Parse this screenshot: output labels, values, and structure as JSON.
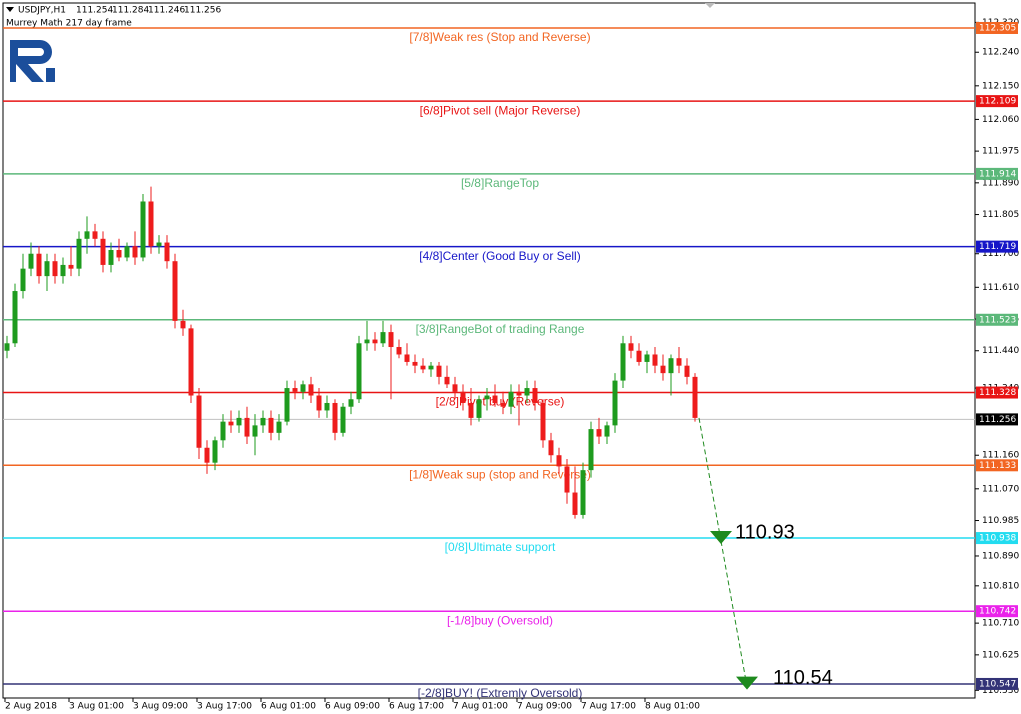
{
  "chart_data": {
    "type": "candlestick",
    "header": {
      "symbol": "USDJPY,H1",
      "quote": [
        111.254,
        111.284,
        111.246,
        111.256
      ],
      "indicator": "Murrey Math 217 day frame"
    },
    "up_color": "#1e9b1e",
    "down_color": "#ee1c1c",
    "ylim": [
      110.504,
      112.38
    ],
    "yticks": [
      {
        "value": 112.32,
        "label": "112.320"
      },
      {
        "value": 112.24,
        "label": "112.240"
      },
      {
        "value": 112.15,
        "label": "112.150"
      },
      {
        "value": 112.06,
        "label": "112.060"
      },
      111.975,
      {
        "value": 111.89,
        "label": "111.890"
      },
      111.805,
      {
        "value": 111.7,
        "label": "111.700"
      },
      {
        "value": 111.61,
        "label": "111.610"
      },
      111.525,
      {
        "value": 111.44,
        "label": "111.440"
      },
      {
        "value": 111.34,
        "label": "111.340"
      },
      {
        "value": 111.16,
        "label": "111.160"
      },
      {
        "value": 111.07,
        "label": "111.070"
      },
      110.985,
      {
        "value": 110.89,
        "label": "110.890"
      },
      {
        "value": 110.81,
        "label": "110.810"
      },
      {
        "value": 110.71,
        "label": "110.710"
      },
      110.625,
      {
        "value": 110.53,
        "label": "110.530"
      }
    ],
    "categories": [
      "2 Aug 2018",
      null,
      null,
      null,
      null,
      null,
      null,
      null,
      "3 Aug 01:00",
      null,
      null,
      null,
      null,
      null,
      null,
      null,
      "3 Aug 09:00",
      null,
      null,
      null,
      null,
      null,
      null,
      null,
      "3 Aug 17:00",
      null,
      null,
      null,
      null,
      null,
      null,
      null,
      "6 Aug 01:00",
      null,
      null,
      null,
      null,
      null,
      null,
      null,
      "6 Aug 09:00",
      null,
      null,
      null,
      null,
      null,
      null,
      null,
      "6 Aug 17:00",
      null,
      null,
      null,
      null,
      null,
      null,
      null,
      "7 Aug 01:00",
      null,
      null,
      null,
      null,
      null,
      null,
      null,
      "7 Aug 09:00",
      null,
      null,
      null,
      null,
      null,
      null,
      null,
      "7 Aug 17:00",
      null,
      null,
      null,
      null,
      null,
      null,
      null,
      "8 Aug 01:00",
      null,
      null,
      null,
      null,
      null,
      null
    ],
    "candles": [
      [
        111.44,
        111.48,
        111.42,
        111.46
      ],
      [
        111.46,
        111.62,
        111.45,
        111.6
      ],
      [
        111.6,
        111.7,
        111.58,
        111.66
      ],
      [
        111.66,
        111.73,
        111.64,
        111.7
      ],
      [
        111.7,
        111.72,
        111.62,
        111.64
      ],
      [
        111.64,
        111.7,
        111.6,
        111.68
      ],
      [
        111.68,
        111.7,
        111.62,
        111.64
      ],
      [
        111.64,
        111.69,
        111.62,
        111.67
      ],
      [
        111.67,
        111.72,
        111.64,
        111.66
      ],
      [
        111.66,
        111.76,
        111.64,
        111.74
      ],
      [
        111.74,
        111.8,
        111.7,
        111.76
      ],
      [
        111.76,
        111.78,
        111.72,
        111.74
      ],
      [
        111.74,
        111.76,
        111.65,
        111.67
      ],
      [
        111.67,
        111.73,
        111.65,
        111.71
      ],
      [
        111.71,
        111.74,
        111.68,
        111.69
      ],
      [
        111.69,
        111.73,
        111.68,
        111.72
      ],
      [
        111.72,
        111.76,
        111.67,
        111.69
      ],
      [
        111.69,
        111.86,
        111.68,
        111.84
      ],
      [
        111.84,
        111.88,
        111.7,
        111.72
      ],
      [
        111.72,
        111.75,
        111.7,
        111.73
      ],
      [
        111.73,
        111.75,
        111.66,
        111.68
      ],
      [
        111.68,
        111.7,
        111.5,
        111.52
      ],
      [
        111.52,
        111.55,
        111.48,
        111.5
      ],
      [
        111.5,
        111.51,
        111.3,
        111.32
      ],
      [
        111.32,
        111.34,
        111.15,
        111.18
      ],
      [
        111.18,
        111.2,
        111.11,
        111.14
      ],
      [
        111.14,
        111.21,
        111.12,
        111.2
      ],
      [
        111.2,
        111.27,
        111.18,
        111.25
      ],
      [
        111.25,
        111.28,
        111.22,
        111.24
      ],
      [
        111.24,
        111.28,
        111.22,
        111.26
      ],
      [
        111.26,
        111.29,
        111.19,
        111.21
      ],
      [
        111.21,
        111.27,
        111.16,
        111.24
      ],
      [
        111.24,
        111.28,
        111.22,
        111.26
      ],
      [
        111.26,
        111.28,
        111.2,
        111.22
      ],
      [
        111.22,
        111.27,
        111.2,
        111.25
      ],
      [
        111.25,
        111.36,
        111.24,
        111.34
      ],
      [
        111.34,
        111.36,
        111.31,
        111.33
      ],
      [
        111.33,
        111.36,
        111.31,
        111.35
      ],
      [
        111.35,
        111.37,
        111.3,
        111.32
      ],
      [
        111.32,
        111.34,
        111.26,
        111.28
      ],
      [
        111.28,
        111.32,
        111.26,
        111.3
      ],
      [
        111.3,
        111.31,
        111.2,
        111.22
      ],
      [
        111.22,
        111.3,
        111.21,
        111.29
      ],
      [
        111.29,
        111.33,
        111.27,
        111.31
      ],
      [
        111.31,
        111.48,
        111.3,
        111.46
      ],
      [
        111.46,
        111.52,
        111.44,
        111.47
      ],
      [
        111.47,
        111.49,
        111.44,
        111.46
      ],
      [
        111.46,
        111.52,
        111.45,
        111.49
      ],
      [
        111.49,
        111.51,
        111.31,
        111.45
      ],
      [
        111.45,
        111.47,
        111.42,
        111.43
      ],
      [
        111.43,
        111.46,
        111.4,
        111.41
      ],
      [
        111.41,
        111.43,
        111.38,
        111.4
      ],
      [
        111.4,
        111.42,
        111.38,
        111.39
      ],
      [
        111.39,
        111.41,
        111.37,
        111.4
      ],
      [
        111.4,
        111.41,
        111.35,
        111.37
      ],
      [
        111.37,
        111.4,
        111.34,
        111.35
      ],
      [
        111.35,
        111.37,
        111.31,
        111.33
      ],
      [
        111.33,
        111.35,
        111.28,
        111.3
      ],
      [
        111.3,
        111.34,
        111.24,
        111.26
      ],
      [
        111.26,
        111.32,
        111.25,
        111.31
      ],
      [
        111.31,
        111.34,
        111.28,
        111.32
      ],
      [
        111.32,
        111.35,
        111.29,
        111.3
      ],
      [
        111.3,
        111.33,
        111.27,
        111.29
      ],
      [
        111.29,
        111.35,
        111.27,
        111.33
      ],
      [
        111.33,
        111.35,
        111.24,
        111.32
      ],
      [
        111.32,
        111.36,
        111.3,
        111.34
      ],
      [
        111.34,
        111.36,
        111.28,
        111.3
      ],
      [
        111.3,
        111.31,
        111.18,
        111.2
      ],
      [
        111.2,
        111.22,
        111.14,
        111.16
      ],
      [
        111.16,
        111.18,
        111.11,
        111.13
      ],
      [
        111.13,
        111.15,
        111.03,
        111.06
      ],
      [
        111.06,
        111.13,
        110.99,
        111.0
      ],
      [
        111.0,
        111.14,
        110.99,
        111.12
      ],
      [
        111.12,
        111.25,
        111.1,
        111.23
      ],
      [
        111.23,
        111.26,
        111.19,
        111.21
      ],
      [
        111.21,
        111.25,
        111.19,
        111.24
      ],
      [
        111.24,
        111.38,
        111.22,
        111.36
      ],
      [
        111.36,
        111.48,
        111.34,
        111.46
      ],
      [
        111.46,
        111.48,
        111.42,
        111.44
      ],
      [
        111.44,
        111.46,
        111.4,
        111.41
      ],
      [
        111.41,
        111.44,
        111.38,
        111.43
      ],
      [
        111.43,
        111.45,
        111.38,
        111.4
      ],
      [
        111.4,
        111.43,
        111.36,
        111.38
      ],
      [
        111.38,
        111.43,
        111.32,
        111.42
      ],
      [
        111.42,
        111.45,
        111.38,
        111.4
      ],
      [
        111.4,
        111.42,
        111.35,
        111.37
      ],
      [
        111.37,
        111.38,
        111.25,
        111.26
      ]
    ],
    "levels": [
      {
        "label": "[7/8]Weak res (Stop and Reverse)",
        "value": 112.305,
        "color": "#f26522"
      },
      {
        "label": "[6/8]Pivot sell (Major Reverse)",
        "value": 112.109,
        "color": "#e81414"
      },
      {
        "label": "[5/8]RangeTop",
        "value": 111.914,
        "color": "#5cb87a"
      },
      {
        "label": "[4/8]Center (Good Buy or Sell)",
        "value": 111.719,
        "color": "#1616c8"
      },
      {
        "label": "[3/8]RangeBot of trading Range",
        "value": 111.523,
        "color": "#5cb87a"
      },
      {
        "label": "[2/8]Pivot buy (Reverse)",
        "value": 111.328,
        "color": "#e81414"
      },
      {
        "label": "[1/8]Weak sup (stop and Reverse)",
        "value": 111.133,
        "color": "#f26522"
      },
      {
        "label": "[0/8]Ultimate support",
        "value": 110.938,
        "color": "#22dcf0"
      },
      {
        "label": "[-1/8]buy (Oversold)",
        "value": 110.742,
        "color": "#ea22ea"
      },
      {
        "label": "[-2/8]BUY! (Extremly Oversold)",
        "value": 110.547,
        "color": "#333377"
      }
    ],
    "targets": [
      110.93,
      110.54
    ],
    "target_color": "#1e8a1e"
  }
}
